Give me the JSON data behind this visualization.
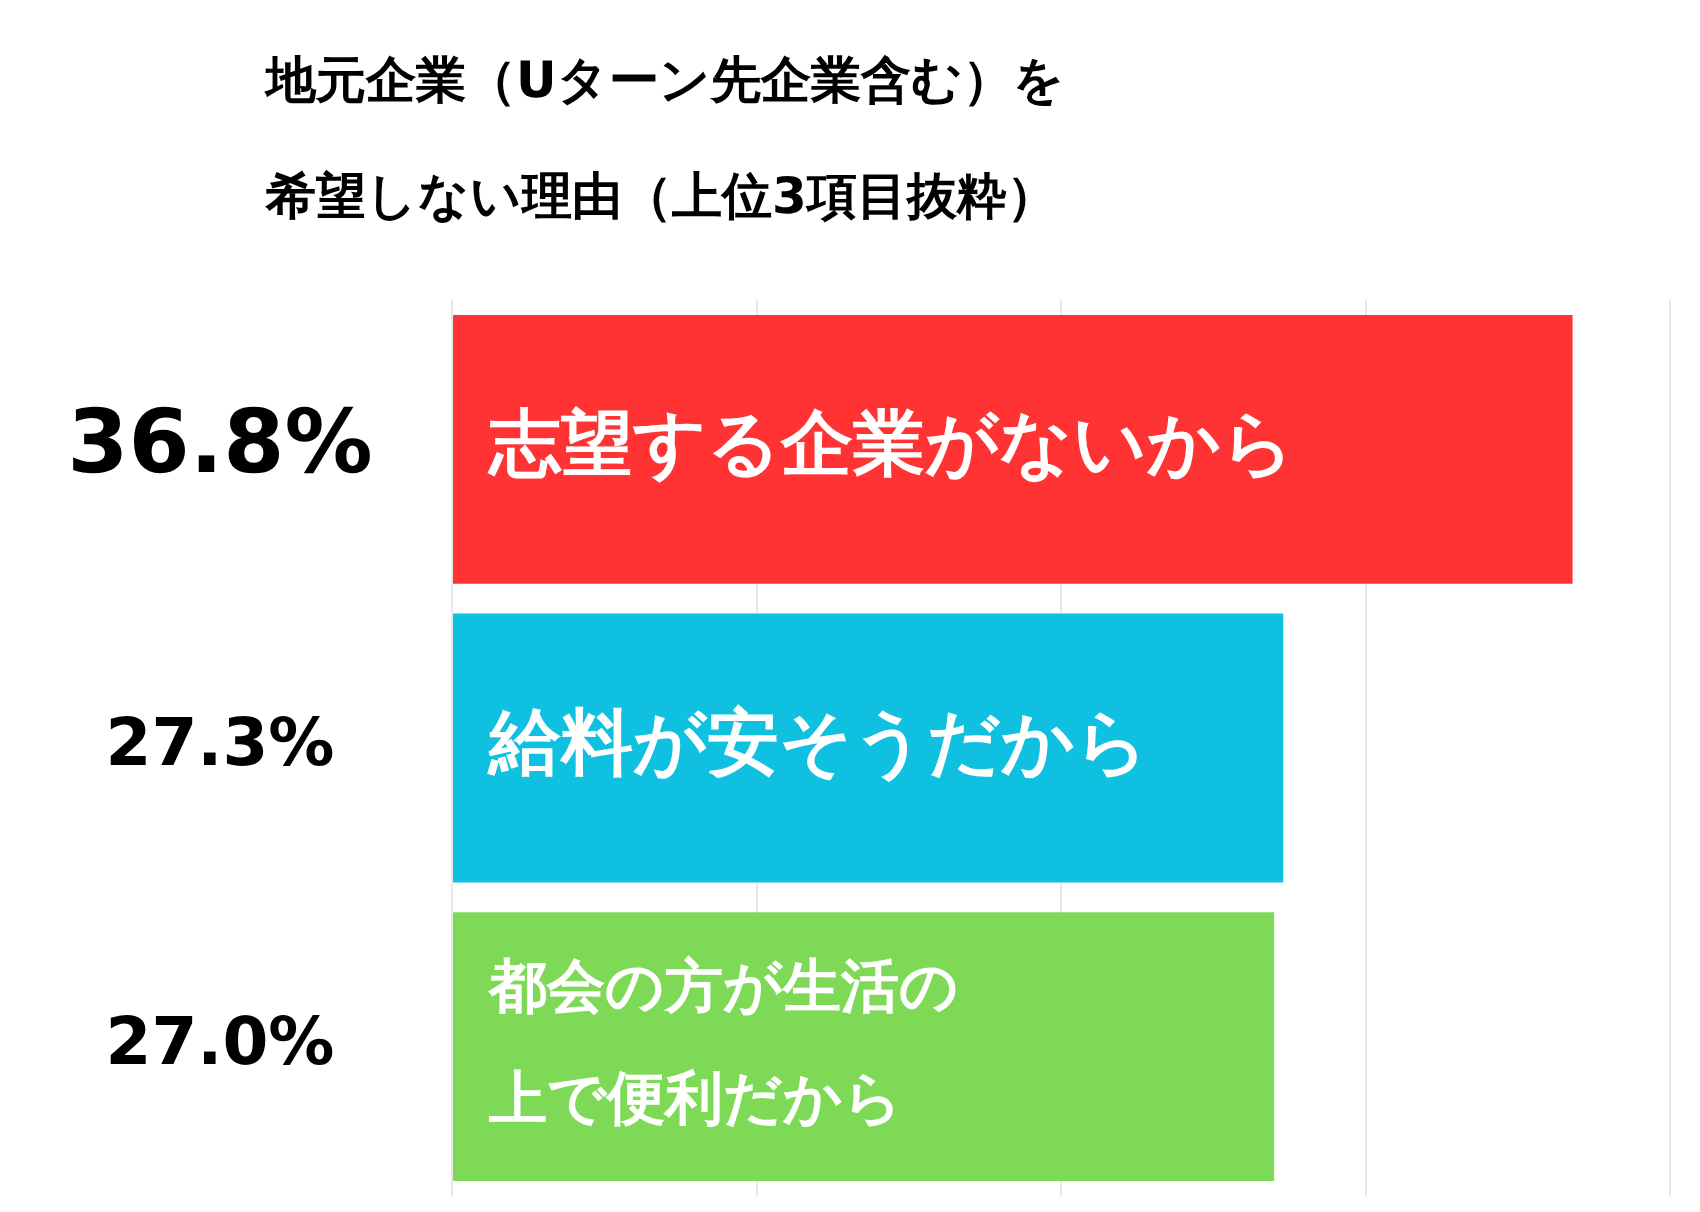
{
  "chart_data": {
    "type": "bar",
    "orientation": "horizontal",
    "title": "地元企業（Uターン先企業含む）を希望しない理由（上位3項目抜粋）",
    "categories": [
      "志望する企業がないから",
      "給料が安そうだから",
      "都会の方が生活の上で便利だから"
    ],
    "values": [
      36.8,
      27.3,
      27.0
    ],
    "colors": [
      "#ff3333",
      "#10c0e0",
      "#7ed957"
    ],
    "value_labels": [
      "36.8%",
      "27.3%",
      "27.0%"
    ],
    "xlim": [
      0,
      40
    ],
    "xticks": [
      {
        "value": 0,
        "label": null
      },
      {
        "value": 10,
        "label": null
      },
      {
        "value": 20,
        "label": null
      },
      {
        "value": 30,
        "label": null
      },
      {
        "value": 40,
        "label": null
      }
    ],
    "tick_labels": false,
    "grid": "x",
    "legend": false
  }
}
